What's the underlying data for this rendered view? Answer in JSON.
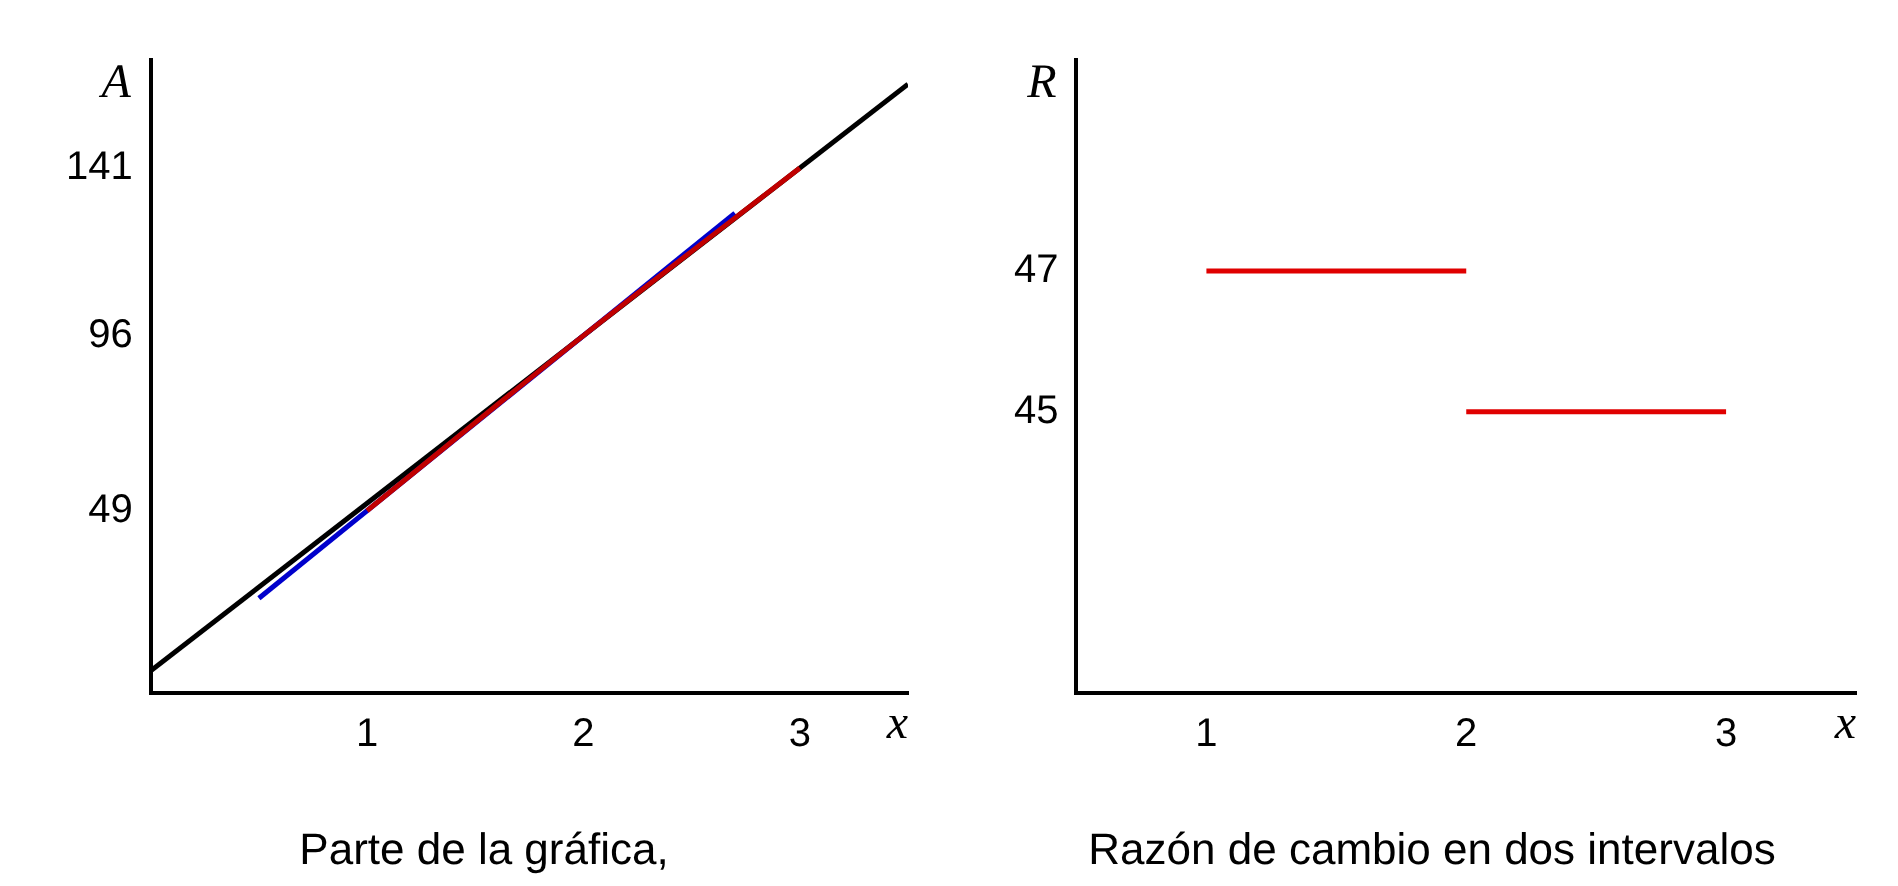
{
  "chart_data": [
    {
      "type": "line",
      "title": "Parte de la gráfica,",
      "xlabel": "x",
      "ylabel": "A",
      "xlim": [
        0,
        3.5
      ],
      "xticks": [
        1,
        2,
        3
      ],
      "ylim": [
        0,
        170
      ],
      "yticks": [
        49,
        96,
        141
      ],
      "legend": false,
      "series": [
        {
          "color": "#c00000",
          "x": [
            1,
            2,
            3
          ],
          "values": [
            49,
            96,
            141
          ]
        },
        {
          "color": "#0000cc",
          "x": [
            0.5,
            2.7
          ],
          "values": [
            25.5,
            128.9
          ]
        },
        {
          "color": "#000000",
          "x": [
            0,
            3.5
          ],
          "values": [
            6,
            163.5
          ]
        }
      ]
    },
    {
      "type": "line",
      "title": "Razón de cambio en dos intervalos",
      "xlabel": "x",
      "ylabel": "R",
      "xlim": [
        0.5,
        3.5
      ],
      "xticks": [
        1,
        2,
        3
      ],
      "ylim": [
        41,
        50
      ],
      "yticks": [
        45,
        47
      ],
      "legend": false,
      "series": [
        {
          "color": "#e00000",
          "x": [
            1,
            2
          ],
          "values": [
            47,
            47
          ]
        },
        {
          "color": "#e00000",
          "x": [
            2,
            3
          ],
          "values": [
            45,
            45
          ]
        }
      ]
    }
  ]
}
